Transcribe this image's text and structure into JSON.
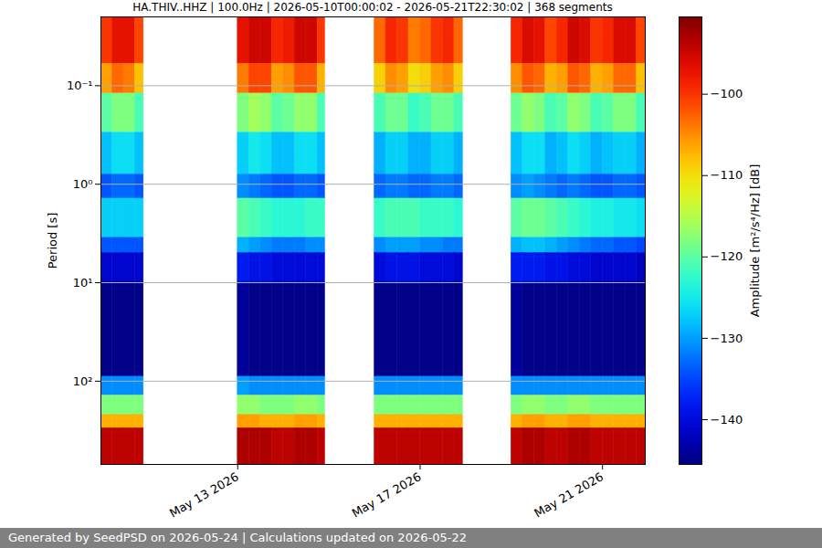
{
  "chart_data": {
    "type": "heatmap",
    "title": "HA.THIV..HHZ | 100.0Hz | 2026-05-10T00:00:02 - 2026-05-21T22:30:02 | 368 segments",
    "caption": "Generated by SeedPSD on 2026-05-24 | Calculations updated on 2026-05-22",
    "y_label": "Period [s]",
    "log": "y",
    "grid": true,
    "xlim": [
      "2026-05-10T00:00:00Z",
      "2026-05-21T22:30:00Z"
    ],
    "xticks": [
      {
        "value": "2026-05-13T00:00:00Z",
        "label": "May 13 2026"
      },
      {
        "value": "2026-05-17T00:00:00Z",
        "label": "May 17 2026"
      },
      {
        "value": "2026-05-21T00:00:00Z",
        "label": "May 21 2026"
      }
    ],
    "ylim": [
      0.02,
      700
    ],
    "yticks": [
      {
        "value": 0.1,
        "label": "10⁻¹"
      },
      {
        "value": 1,
        "label": "10⁰"
      },
      {
        "value": 10,
        "label": "10¹"
      },
      {
        "value": 100,
        "label": "10²"
      }
    ],
    "x_bins": [
      [
        "2026-05-10T00:00:00Z",
        "2026-05-10T06:00:00Z"
      ],
      [
        "2026-05-10T06:00:00Z",
        "2026-05-10T12:00:00Z"
      ],
      [
        "2026-05-10T12:00:00Z",
        "2026-05-10T18:00:00Z"
      ],
      [
        "2026-05-10T18:00:00Z",
        "2026-05-10T22:30:00Z"
      ],
      [
        "2026-05-13T00:00:00Z",
        "2026-05-13T06:00:00Z"
      ],
      [
        "2026-05-13T06:00:00Z",
        "2026-05-13T12:00:00Z"
      ],
      [
        "2026-05-13T12:00:00Z",
        "2026-05-13T18:00:00Z"
      ],
      [
        "2026-05-13T18:00:00Z",
        "2026-05-14T00:00:00Z"
      ],
      [
        "2026-05-14T00:00:00Z",
        "2026-05-14T06:00:00Z"
      ],
      [
        "2026-05-14T06:00:00Z",
        "2026-05-14T12:00:00Z"
      ],
      [
        "2026-05-14T12:00:00Z",
        "2026-05-14T18:00:00Z"
      ],
      [
        "2026-05-14T18:00:00Z",
        "2026-05-14T22:00:00Z"
      ],
      [
        "2026-05-16T00:00:00Z",
        "2026-05-16T06:00:00Z"
      ],
      [
        "2026-05-16T06:00:00Z",
        "2026-05-16T12:00:00Z"
      ],
      [
        "2026-05-16T12:00:00Z",
        "2026-05-16T18:00:00Z"
      ],
      [
        "2026-05-16T18:00:00Z",
        "2026-05-17T00:00:00Z"
      ],
      [
        "2026-05-17T00:00:00Z",
        "2026-05-17T06:00:00Z"
      ],
      [
        "2026-05-17T06:00:00Z",
        "2026-05-17T12:00:00Z"
      ],
      [
        "2026-05-17T12:00:00Z",
        "2026-05-17T18:00:00Z"
      ],
      [
        "2026-05-17T18:00:00Z",
        "2026-05-17T22:30:00Z"
      ],
      [
        "2026-05-19T00:00:00Z",
        "2026-05-19T06:00:00Z"
      ],
      [
        "2026-05-19T06:00:00Z",
        "2026-05-19T12:00:00Z"
      ],
      [
        "2026-05-19T12:00:00Z",
        "2026-05-19T18:00:00Z"
      ],
      [
        "2026-05-19T18:00:00Z",
        "2026-05-20T00:00:00Z"
      ],
      [
        "2026-05-20T00:00:00Z",
        "2026-05-20T06:00:00Z"
      ],
      [
        "2026-05-20T06:00:00Z",
        "2026-05-20T12:00:00Z"
      ],
      [
        "2026-05-20T12:00:00Z",
        "2026-05-20T18:00:00Z"
      ],
      [
        "2026-05-20T18:00:00Z",
        "2026-05-21T00:00:00Z"
      ],
      [
        "2026-05-21T00:00:00Z",
        "2026-05-21T06:00:00Z"
      ],
      [
        "2026-05-21T06:00:00Z",
        "2026-05-21T12:00:00Z"
      ],
      [
        "2026-05-21T12:00:00Z",
        "2026-05-21T18:00:00Z"
      ],
      [
        "2026-05-21T18:00:00Z",
        "2026-05-21T22:30:00Z"
      ]
    ],
    "y_bins": [
      0.02,
      0.06,
      0.12,
      0.3,
      0.8,
      1.4,
      3.5,
      5,
      10,
      90,
      140,
      220,
      300,
      700
    ],
    "values": [
      [
        -100,
        -97,
        -97,
        -101,
        -97,
        -95,
        -95,
        -99,
        -98,
        -95,
        -95,
        -100,
        -103,
        -99,
        -100,
        -104,
        -103,
        -100,
        -99,
        -103,
        -99,
        -96,
        -97,
        -101,
        -99,
        -95,
        -96,
        -100,
        -99,
        -96,
        -96,
        -101
      ],
      [
        -106,
        -103,
        -104,
        -108,
        -104,
        -101,
        -101,
        -106,
        -105,
        -102,
        -102,
        -107,
        -109,
        -105,
        -106,
        -110,
        -109,
        -106,
        -105,
        -109,
        -105,
        -102,
        -103,
        -107,
        -106,
        -102,
        -103,
        -107,
        -106,
        -103,
        -103,
        -108
      ],
      [
        -120,
        -118,
        -118,
        -121,
        -118,
        -116,
        -117,
        -120,
        -119,
        -117,
        -117,
        -121,
        -121,
        -119,
        -119,
        -122,
        -121,
        -119,
        -119,
        -121,
        -119,
        -117,
        -118,
        -121,
        -120,
        -117,
        -118,
        -121,
        -120,
        -118,
        -118,
        -121
      ],
      [
        -128,
        -126,
        -126,
        -128,
        -127,
        -125,
        -126,
        -128,
        -128,
        -126,
        -126,
        -128,
        -129,
        -127,
        -127,
        -129,
        -129,
        -127,
        -127,
        -129,
        -128,
        -126,
        -126,
        -129,
        -128,
        -126,
        -127,
        -129,
        -128,
        -127,
        -127,
        -129
      ],
      [
        -134,
        -133,
        -133,
        -134,
        -131,
        -132,
        -133,
        -134,
        -134,
        -133,
        -133,
        -134,
        -133,
        -132,
        -132,
        -133,
        -133,
        -132,
        -132,
        -133,
        -131,
        -130,
        -131,
        -132,
        -133,
        -132,
        -133,
        -134,
        -134,
        -133,
        -133,
        -134
      ],
      [
        -127,
        -127,
        -127,
        -127,
        -120,
        -121,
        -122,
        -123,
        -123,
        -123,
        -122,
        -122,
        -122,
        -121,
        -121,
        -121,
        -122,
        -122,
        -122,
        -123,
        -120,
        -119,
        -119,
        -120,
        -121,
        -122,
        -123,
        -124,
        -124,
        -125,
        -125,
        -126
      ],
      [
        -134,
        -134,
        -134,
        -134,
        -129,
        -130,
        -131,
        -132,
        -132,
        -132,
        -131,
        -131,
        -131,
        -130,
        -130,
        -130,
        -131,
        -131,
        -132,
        -132,
        -129,
        -128,
        -128,
        -129,
        -130,
        -131,
        -132,
        -133,
        -133,
        -134,
        -134,
        -135
      ],
      [
        -141,
        -141,
        -141,
        -141,
        -138,
        -139,
        -139,
        -140,
        -140,
        -140,
        -140,
        -140,
        -140,
        -139,
        -139,
        -139,
        -140,
        -140,
        -140,
        -141,
        -138,
        -138,
        -138,
        -139,
        -139,
        -140,
        -140,
        -141,
        -141,
        -141,
        -141,
        -142
      ],
      [
        -145,
        -145,
        -145,
        -145,
        -144,
        -145,
        -145,
        -145,
        -145,
        -145,
        -145,
        -145,
        -145,
        -145,
        -145,
        -145,
        -145,
        -145,
        -145,
        -145,
        -144,
        -145,
        -145,
        -145,
        -145,
        -145,
        -145,
        -145,
        -145,
        -145,
        -145,
        -145
      ],
      [
        -131,
        -131,
        -131,
        -131,
        -130,
        -131,
        -131,
        -131,
        -131,
        -131,
        -131,
        -131,
        -131,
        -131,
        -131,
        -131,
        -131,
        -131,
        -131,
        -131,
        -131,
        -131,
        -131,
        -131,
        -131,
        -131,
        -131,
        -131,
        -131,
        -131,
        -131,
        -131
      ],
      [
        -118,
        -118,
        -118,
        -118,
        -117,
        -117,
        -118,
        -118,
        -118,
        -117,
        -117,
        -118,
        -118,
        -118,
        -118,
        -118,
        -118,
        -118,
        -118,
        -118,
        -118,
        -117,
        -117,
        -118,
        -118,
        -117,
        -117,
        -118,
        -118,
        -118,
        -118,
        -118
      ],
      [
        -107,
        -107,
        -107,
        -107,
        -106,
        -106,
        -107,
        -107,
        -107,
        -106,
        -106,
        -107,
        -107,
        -107,
        -107,
        -107,
        -107,
        -107,
        -107,
        -107,
        -107,
        -106,
        -106,
        -107,
        -107,
        -106,
        -106,
        -107,
        -107,
        -107,
        -107,
        -107
      ],
      [
        -94,
        -94,
        -94,
        -94,
        -93,
        -93,
        -93,
        -94,
        -94,
        -93,
        -93,
        -94,
        -94,
        -94,
        -94,
        -94,
        -94,
        -94,
        -94,
        -94,
        -94,
        -93,
        -93,
        -94,
        -94,
        -93,
        -93,
        -94,
        -94,
        -94,
        -94,
        -94
      ]
    ],
    "colorbar": {
      "label": "Amplitude [m²/s⁴/Hz] [dB]",
      "zlim": [
        -145.5,
        -90.5
      ],
      "zticks": [
        {
          "value": -100,
          "label": "−100"
        },
        {
          "value": -110,
          "label": "−110"
        },
        {
          "value": -120,
          "label": "−120"
        },
        {
          "value": -130,
          "label": "−130"
        },
        {
          "value": -140,
          "label": "−140"
        }
      ]
    }
  }
}
